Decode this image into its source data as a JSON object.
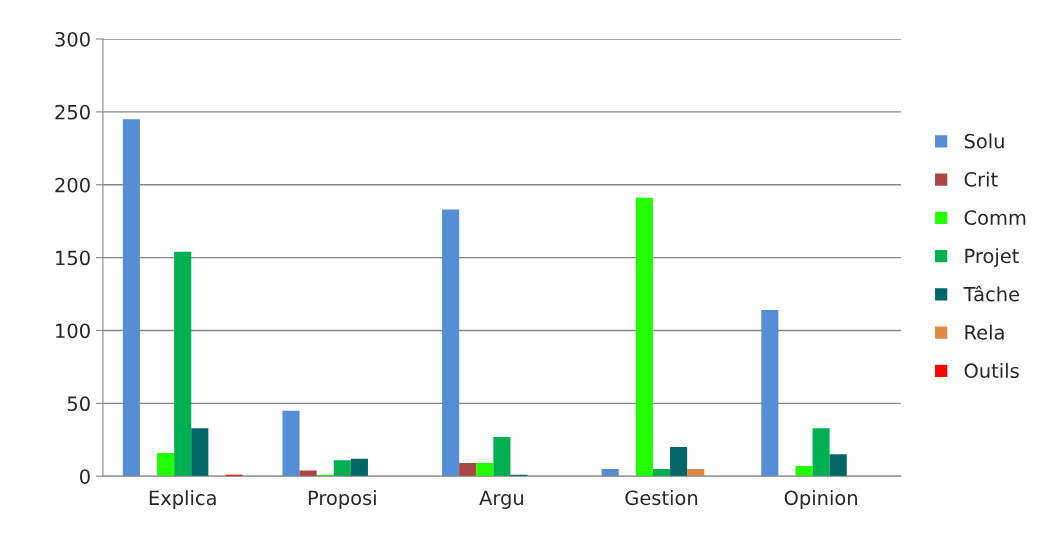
{
  "chart_data": {
    "type": "bar",
    "categories": [
      "Explica",
      "Proposi",
      "Argu",
      "Gestion",
      "Opinion"
    ],
    "series": [
      {
        "name": "Solu",
        "color": "#558ed5",
        "values": [
          245,
          45,
          183,
          5,
          114
        ]
      },
      {
        "name": "Crit",
        "color": "#aa4643",
        "values": [
          0,
          4,
          9,
          0,
          0
        ]
      },
      {
        "name": "Comm",
        "color": "#22ff00",
        "values": [
          16,
          1,
          9,
          191,
          7
        ]
      },
      {
        "name": "Projet",
        "color": "#00b050",
        "values": [
          154,
          11,
          27,
          5,
          33
        ]
      },
      {
        "name": "Tâche",
        "color": "#006666",
        "values": [
          33,
          12,
          1,
          20,
          15
        ]
      },
      {
        "name": "Rela",
        "color": "#dd8844",
        "values": [
          0,
          0,
          0,
          5,
          0
        ]
      },
      {
        "name": "Outils",
        "color": "#ff0000",
        "values": [
          1,
          0,
          0,
          0,
          0
        ]
      }
    ],
    "ylim": [
      0,
      300
    ],
    "yticks": [
      0,
      50,
      100,
      150,
      200,
      250,
      300
    ],
    "grid": "y",
    "legend": "right"
  }
}
